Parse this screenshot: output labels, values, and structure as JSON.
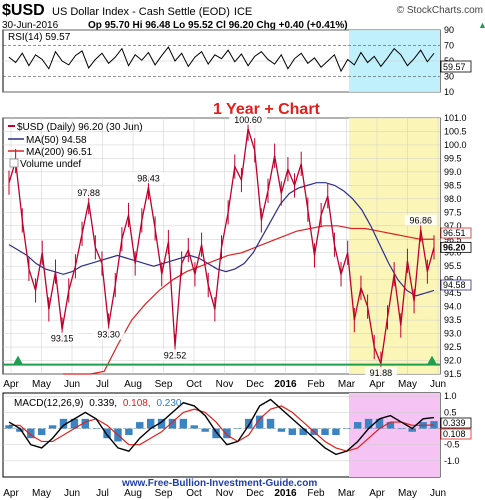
{
  "header": {
    "symbol": "$USD",
    "name": "US Dollar Index - Cash Settle (EOD)",
    "exchange": "ICE",
    "watermark": "© StockCharts.com",
    "date": "30-Jun-2016",
    "ohlc": "Op 95.70  Hi 96.48  Lo 95.52  Cl 96.20  Chg +0.40 (+0.41%)",
    "chg_arrow": "▲"
  },
  "annotation": "1 Year + Chart",
  "footer_url": "www.Free-Bullion-Investment-Guide.com",
  "colors": {
    "price": "#c0002a",
    "ma50": "#2d2d8f",
    "ma200": "#dd2222",
    "support": "#1e9e50",
    "rsi_zone": "#bff0fb",
    "price_zone": "#fbf6b8",
    "macd_zone": "#f6c4f4",
    "grid": "#cccccc"
  },
  "chart_data": [
    {
      "type": "line",
      "panel": "rsi",
      "label": "RSI(14) 59.57",
      "ylim": [
        10,
        90
      ],
      "y_ticks": [
        "90",
        "70",
        "50",
        "30",
        "10"
      ],
      "overbought": 70,
      "oversold": 30,
      "value_label": "59.57",
      "points": [
        55,
        48,
        60,
        44,
        58,
        52,
        40,
        62,
        50,
        45,
        57,
        63,
        41,
        52,
        60,
        47,
        55,
        66,
        44,
        58,
        51,
        61,
        45,
        57,
        68,
        50,
        60,
        43,
        55,
        62,
        46,
        58,
        53,
        64,
        49,
        59,
        44,
        56,
        62,
        52,
        46,
        58,
        40,
        53,
        60,
        47,
        54,
        42,
        50,
        58,
        37,
        52,
        45,
        61,
        48,
        56,
        43,
        54,
        66,
        58,
        44,
        53,
        64,
        49,
        60
      ]
    },
    {
      "type": "line",
      "panel": "price",
      "title": "$USD (Daily) 96.20 (30 Jun)",
      "legend": [
        "MA(50) 94.58",
        "MA(200) 96.51",
        "Volume undef"
      ],
      "ylim": [
        91.5,
        101.0
      ],
      "y_ticks": [
        "101.0",
        "100.5",
        "100.0",
        "99.5",
        "99.0",
        "98.5",
        "98.0",
        "97.5",
        "97.0",
        "96.5",
        "96.0",
        "95.5",
        "95.0",
        "94.5",
        "94.0",
        "93.5",
        "93.0",
        "92.5",
        "92.0",
        "91.5"
      ],
      "x_ticks": [
        "Apr",
        "May",
        "Jun",
        "Jul",
        "Aug",
        "Sep",
        "Oct",
        "Nov",
        "Dec",
        "2016",
        "Feb",
        "Mar",
        "Apr",
        "May",
        "Jun"
      ],
      "price_points": [
        98.6,
        99.4,
        97.2,
        95.4,
        94.6,
        96.0,
        93.9,
        95.3,
        93.15,
        94.6,
        95.5,
        96.7,
        97.88,
        96.2,
        95.6,
        93.3,
        94.8,
        96.5,
        97.4,
        95.6,
        97.2,
        98.43,
        96.9,
        95.2,
        96.4,
        92.52,
        95.6,
        96.1,
        95.2,
        96.3,
        94.8,
        93.9,
        96.2,
        97.5,
        99.2,
        98.7,
        100.6,
        99.8,
        97.2,
        98.3,
        99.6,
        98.2,
        99.1,
        98.5,
        99.3,
        97.6,
        95.9,
        97.4,
        98.1,
        96.3,
        95.2,
        96.0,
        93.5,
        94.7,
        94.0,
        92.5,
        91.88,
        93.6,
        95.2,
        93.3,
        95.7,
        94.2,
        96.86,
        95.3,
        96.2
      ],
      "ma50_points": [
        96.3,
        96.1,
        95.9,
        95.6,
        95.4,
        95.3,
        95.2,
        95.3,
        95.5,
        95.6,
        95.7,
        95.8,
        95.9,
        95.8,
        95.7,
        95.6,
        95.5,
        95.6,
        95.7,
        95.8,
        95.9,
        95.8,
        95.6,
        95.4,
        95.3,
        95.4,
        95.6,
        96.0,
        96.6,
        97.2,
        97.8,
        98.2,
        98.4,
        98.5,
        98.6,
        98.6,
        98.5,
        98.3,
        98.0,
        97.6,
        97.0,
        96.3,
        95.6,
        95.0,
        94.6,
        94.4,
        94.5,
        94.6
      ],
      "ma200_points": [
        85.0,
        88.0,
        90.0,
        91.6,
        92.6,
        93.5,
        94.1,
        94.6,
        95.0,
        95.3,
        95.5,
        95.7,
        95.9,
        96.0,
        96.2,
        96.4,
        96.6,
        96.8,
        96.9,
        97.0,
        97.0,
        96.9,
        96.9,
        96.8,
        96.7,
        96.6,
        96.5,
        96.5
      ],
      "labels": [
        {
          "text": "93.15",
          "x": 8,
          "y": 93.15
        },
        {
          "text": "97.88",
          "x": 12,
          "y": 97.88
        },
        {
          "text": "93.30",
          "x": 15,
          "y": 93.3
        },
        {
          "text": "98.43",
          "x": 21,
          "y": 98.43
        },
        {
          "text": "92.52",
          "x": 25,
          "y": 92.52
        },
        {
          "text": "100.60",
          "x": 36,
          "y": 100.6
        },
        {
          "text": "91.88",
          "x": 56,
          "y": 91.88
        },
        {
          "text": "96.86",
          "x": 62,
          "y": 96.86
        }
      ],
      "support_level": 91.85,
      "right_markers": [
        {
          "text": "96.51",
          "y": 96.51,
          "kind": "ma200"
        },
        {
          "text": "96.20",
          "y": 96.2,
          "kind": "price"
        },
        {
          "text": "94.58",
          "y": 94.58,
          "kind": "ma50"
        }
      ]
    },
    {
      "type": "line",
      "panel": "macd",
      "label_prefix": "MACD(12,26,9)",
      "label_macd": "0.339,",
      "label_signal": "0.108,",
      "label_hist": "0.230",
      "ylim": [
        -1.5,
        1.1
      ],
      "y_ticks": [
        "1.0",
        "0.5",
        "0.0",
        "-0.5",
        "-1.0"
      ],
      "value_labels": [
        "0.339",
        "0.108"
      ],
      "macd_points": [
        0.2,
        0.0,
        -0.5,
        -0.6,
        -0.3,
        0.1,
        0.3,
        0.5,
        0.3,
        -0.2,
        -0.6,
        -0.7,
        -0.3,
        0.0,
        0.2,
        0.5,
        0.8,
        0.7,
        0.4,
        -0.1,
        -0.5,
        -0.4,
        0.1,
        0.7,
        0.9,
        0.6,
        0.3,
        0.0,
        -0.3,
        -0.6,
        -0.8,
        -0.7,
        -0.4,
        0.0,
        0.3,
        0.4,
        0.2,
        0.0,
        0.3,
        0.34
      ],
      "signal_points": [
        0.1,
        0.1,
        -0.2,
        -0.4,
        -0.4,
        -0.2,
        0.0,
        0.2,
        0.3,
        0.1,
        -0.2,
        -0.5,
        -0.5,
        -0.3,
        -0.1,
        0.2,
        0.5,
        0.6,
        0.5,
        0.2,
        -0.2,
        -0.4,
        -0.2,
        0.3,
        0.6,
        0.7,
        0.5,
        0.2,
        -0.1,
        -0.4,
        -0.6,
        -0.7,
        -0.6,
        -0.3,
        0.0,
        0.2,
        0.2,
        0.1,
        0.1,
        0.11
      ],
      "hist_points": [
        0.1,
        -0.1,
        -0.3,
        -0.2,
        0.1,
        0.3,
        0.3,
        0.3,
        0.0,
        -0.3,
        -0.4,
        -0.2,
        0.2,
        0.3,
        0.3,
        0.3,
        0.3,
        0.1,
        -0.1,
        -0.3,
        -0.3,
        0.0,
        0.3,
        0.4,
        0.3,
        -0.1,
        -0.2,
        -0.2,
        -0.2,
        -0.2,
        -0.2,
        0.0,
        0.2,
        0.3,
        0.3,
        0.2,
        0.0,
        -0.1,
        0.2,
        0.23
      ],
      "x_ticks": [
        "Apr",
        "May",
        "Jun",
        "Jul",
        "Aug",
        "Sep",
        "Oct",
        "Nov",
        "Dec",
        "2016",
        "Feb",
        "Mar",
        "Apr",
        "May",
        "Jun"
      ]
    }
  ]
}
